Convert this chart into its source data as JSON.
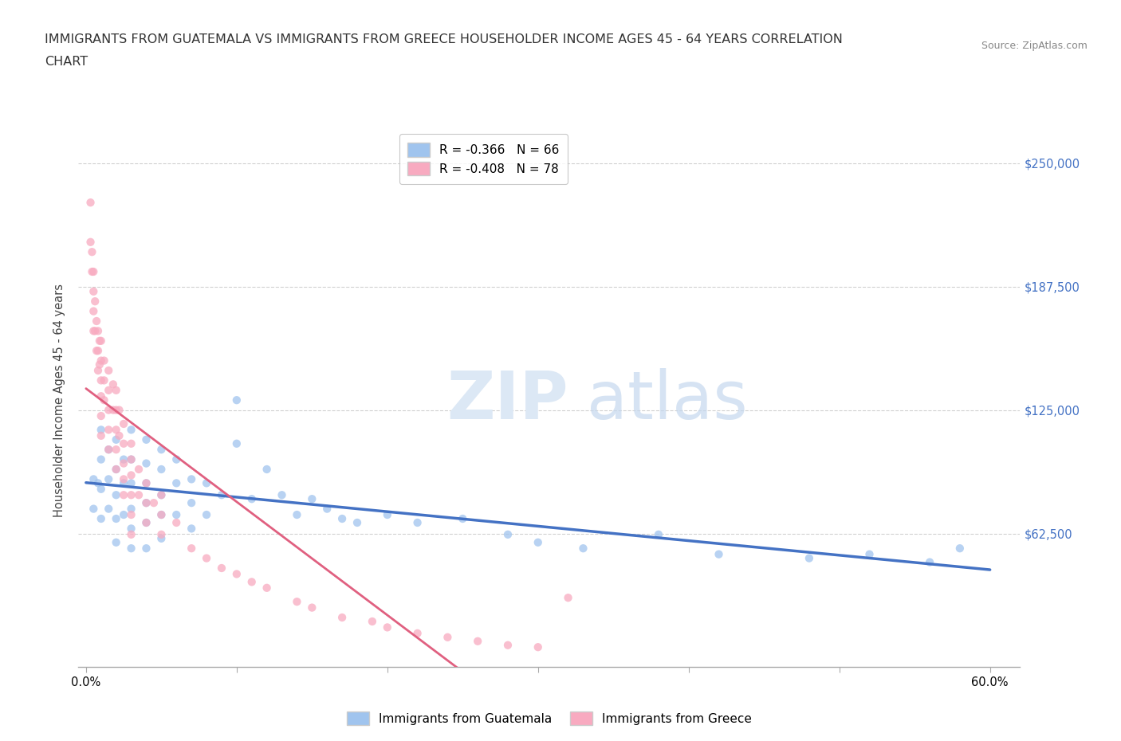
{
  "title_line1": "IMMIGRANTS FROM GUATEMALA VS IMMIGRANTS FROM GREECE HOUSEHOLDER INCOME AGES 45 - 64 YEARS CORRELATION",
  "title_line2": "CHART",
  "source_text": "Source: ZipAtlas.com",
  "ylabel": "Householder Income Ages 45 - 64 years",
  "xlim": [
    -0.005,
    0.62
  ],
  "ylim": [
    -5000,
    265000
  ],
  "xticks": [
    0.0,
    0.1,
    0.2,
    0.3,
    0.4,
    0.5,
    0.6
  ],
  "xticklabels_show": [
    "0.0%",
    "",
    "",
    "",
    "",
    "",
    "60.0%"
  ],
  "yticks": [
    0,
    62500,
    125000,
    187500,
    250000
  ],
  "yticklabels": [
    "",
    "$62,500",
    "$125,000",
    "$187,500",
    "$250,000"
  ],
  "grid_color": "#d0d0d0",
  "legend_label_guatemala": "Immigrants from Guatemala",
  "legend_label_greece": "Immigrants from Greece",
  "legend_entries": [
    {
      "label": "R = -0.366   N = 66",
      "color": "#a8c8f0"
    },
    {
      "label": "R = -0.408   N = 78",
      "color": "#f8b8c8"
    }
  ],
  "scatter_guatemala_color": "#a0c4ee",
  "scatter_greece_color": "#f8aac0",
  "trendline_guatemala_color": "#4472c4",
  "trendline_greece_color": "#e06080",
  "ytick_color": "#4472c4",
  "background_color": "#ffffff",
  "title_fontsize": 11.5,
  "tick_fontsize": 10.5,
  "axis_label_fontsize": 10.5,
  "guatemala_x": [
    0.005,
    0.005,
    0.008,
    0.01,
    0.01,
    0.01,
    0.01,
    0.015,
    0.015,
    0.015,
    0.02,
    0.02,
    0.02,
    0.02,
    0.02,
    0.025,
    0.025,
    0.025,
    0.03,
    0.03,
    0.03,
    0.03,
    0.03,
    0.03,
    0.04,
    0.04,
    0.04,
    0.04,
    0.04,
    0.04,
    0.05,
    0.05,
    0.05,
    0.05,
    0.05,
    0.06,
    0.06,
    0.06,
    0.07,
    0.07,
    0.07,
    0.08,
    0.08,
    0.09,
    0.1,
    0.1,
    0.11,
    0.12,
    0.13,
    0.14,
    0.15,
    0.16,
    0.17,
    0.18,
    0.2,
    0.22,
    0.25,
    0.28,
    0.3,
    0.33,
    0.38,
    0.42,
    0.48,
    0.52,
    0.56,
    0.58
  ],
  "guatemala_y": [
    90000,
    75000,
    88000,
    115000,
    100000,
    85000,
    70000,
    105000,
    90000,
    75000,
    110000,
    95000,
    82000,
    70000,
    58000,
    100000,
    88000,
    72000,
    115000,
    100000,
    88000,
    75000,
    65000,
    55000,
    110000,
    98000,
    88000,
    78000,
    68000,
    55000,
    105000,
    95000,
    82000,
    72000,
    60000,
    100000,
    88000,
    72000,
    90000,
    78000,
    65000,
    88000,
    72000,
    82000,
    130000,
    108000,
    80000,
    95000,
    82000,
    72000,
    80000,
    75000,
    70000,
    68000,
    72000,
    68000,
    70000,
    62000,
    58000,
    55000,
    62000,
    52000,
    50000,
    52000,
    48000,
    55000
  ],
  "greece_x": [
    0.003,
    0.003,
    0.004,
    0.004,
    0.005,
    0.005,
    0.005,
    0.005,
    0.006,
    0.006,
    0.007,
    0.007,
    0.008,
    0.008,
    0.008,
    0.009,
    0.009,
    0.01,
    0.01,
    0.01,
    0.01,
    0.01,
    0.01,
    0.012,
    0.012,
    0.012,
    0.015,
    0.015,
    0.015,
    0.015,
    0.015,
    0.018,
    0.018,
    0.02,
    0.02,
    0.02,
    0.02,
    0.02,
    0.022,
    0.022,
    0.025,
    0.025,
    0.025,
    0.025,
    0.025,
    0.03,
    0.03,
    0.03,
    0.03,
    0.03,
    0.03,
    0.035,
    0.035,
    0.04,
    0.04,
    0.04,
    0.045,
    0.05,
    0.05,
    0.05,
    0.06,
    0.07,
    0.08,
    0.09,
    0.1,
    0.11,
    0.12,
    0.14,
    0.15,
    0.17,
    0.19,
    0.2,
    0.22,
    0.24,
    0.26,
    0.28,
    0.3,
    0.32
  ],
  "greece_y": [
    230000,
    210000,
    205000,
    195000,
    195000,
    185000,
    175000,
    165000,
    180000,
    165000,
    170000,
    155000,
    165000,
    155000,
    145000,
    160000,
    148000,
    160000,
    150000,
    140000,
    132000,
    122000,
    112000,
    150000,
    140000,
    130000,
    145000,
    135000,
    125000,
    115000,
    105000,
    138000,
    125000,
    135000,
    125000,
    115000,
    105000,
    95000,
    125000,
    112000,
    118000,
    108000,
    98000,
    90000,
    82000,
    108000,
    100000,
    92000,
    82000,
    72000,
    62000,
    95000,
    82000,
    88000,
    78000,
    68000,
    78000,
    82000,
    72000,
    62000,
    68000,
    55000,
    50000,
    45000,
    42000,
    38000,
    35000,
    28000,
    25000,
    20000,
    18000,
    15000,
    12000,
    10000,
    8000,
    6000,
    5000,
    30000
  ]
}
